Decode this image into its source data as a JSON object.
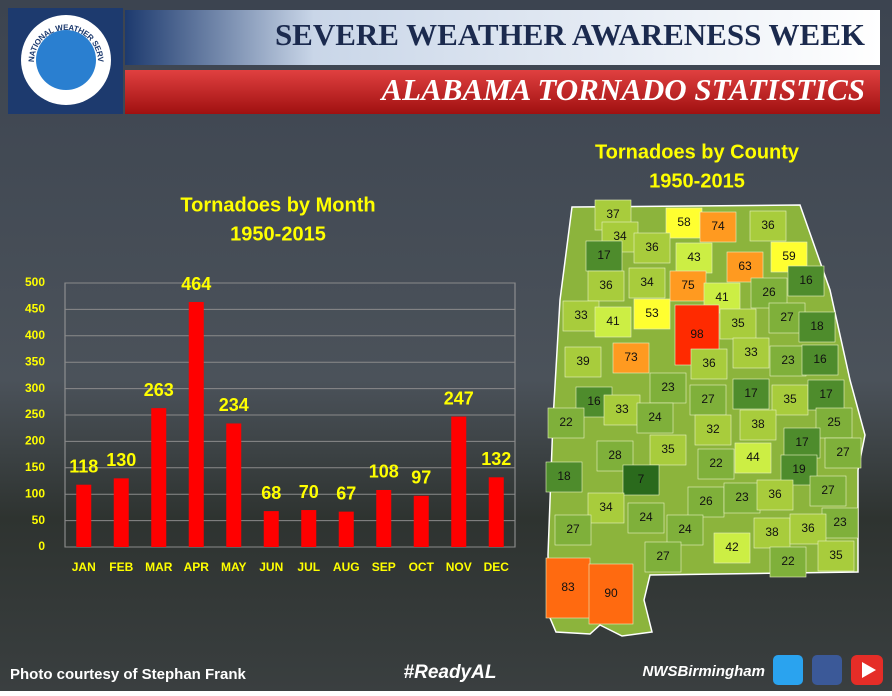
{
  "header": {
    "logo": "NATIONAL WEATHER SERVICE",
    "title": "SEVERE WEATHER AWARENESS WEEK",
    "subtitle": "ALABAMA TORNADO STATISTICS"
  },
  "chart_data": {
    "type": "bar",
    "title": "Tornadoes by Month",
    "subtitle": "1950-2015",
    "categories": [
      "JAN",
      "FEB",
      "MAR",
      "APR",
      "MAY",
      "JUN",
      "JUL",
      "AUG",
      "SEP",
      "OCT",
      "NOV",
      "DEC"
    ],
    "values": [
      118,
      130,
      263,
      464,
      234,
      68,
      70,
      67,
      108,
      97,
      247,
      132
    ],
    "color": "#ff0000",
    "ylim": [
      0,
      500
    ],
    "yticks": [
      0,
      50,
      100,
      150,
      200,
      250,
      300,
      350,
      400,
      450,
      500
    ],
    "grid": true
  },
  "map": {
    "title": "Tornadoes by County",
    "subtitle": "1950-2015",
    "counties": [
      37,
      58,
      74,
      36,
      34,
      36,
      17,
      43,
      63,
      59,
      36,
      34,
      75,
      16,
      26,
      41,
      33,
      41,
      53,
      98,
      35,
      27,
      18,
      33,
      39,
      73,
      36,
      23,
      16,
      23,
      17,
      35,
      17,
      16,
      33,
      27,
      24,
      22,
      38,
      32,
      25,
      35,
      17,
      28,
      22,
      44,
      19,
      27,
      18,
      7,
      26,
      23,
      36,
      27,
      34,
      24,
      24,
      23,
      27,
      42,
      38,
      36,
      27,
      22,
      35,
      83,
      90
    ]
  },
  "footer": {
    "credit": "Photo courtesy of Stephan Frank",
    "hashtag": "#ReadyAL",
    "handle": "NWSBirmingham"
  }
}
